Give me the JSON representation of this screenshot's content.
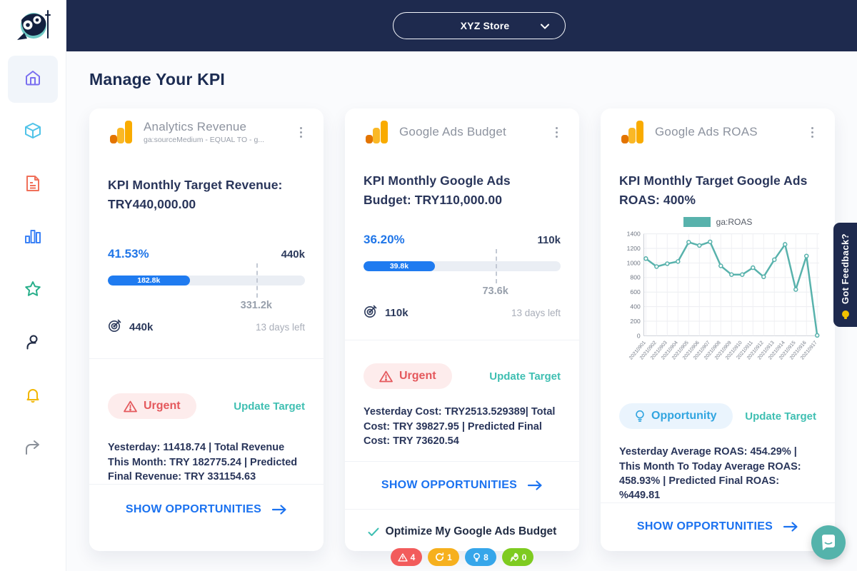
{
  "topbar": {
    "store_selector_label": "XYZ Store"
  },
  "page": {
    "title": "Manage Your KPI"
  },
  "sidebar": {
    "items": [
      {
        "name": "home",
        "active": true
      },
      {
        "name": "products",
        "active": false
      },
      {
        "name": "reports",
        "active": false
      },
      {
        "name": "analytics",
        "active": false
      },
      {
        "name": "favorites",
        "active": false
      },
      {
        "name": "account",
        "active": false
      },
      {
        "name": "notifications",
        "active": false
      },
      {
        "name": "share",
        "active": false
      }
    ]
  },
  "feedback_tab": {
    "label": "Got Feedback?"
  },
  "cards": [
    {
      "title": "Analytics Revenue",
      "subtitle": "ga:sourceMedium - EQUAL TO - g...",
      "kpi_label": "KPI Monthly Target Revenue:",
      "kpi_value": "TRY440,000.00",
      "progress": {
        "percent_label": "41.53%",
        "percent": 41.53,
        "max_label": "440k",
        "fill_label": "182.8k",
        "marker_percent": 75.3,
        "marker_label": "331.2k"
      },
      "target": {
        "value": "440k",
        "days_left": "13 days left"
      },
      "status_label": "Urgent",
      "update_target_label": "Update Target",
      "summary": "Yesterday: 11418.74 | Total Revenue This Month: TRY 182775.24 | Predicted Final Revenue: TRY 331154.63",
      "show_opportunities_label": "SHOW OPPORTUNITIES"
    },
    {
      "title": "Google Ads Budget",
      "kpi_label": "KPI Monthly Google Ads Budget:",
      "kpi_value": "TRY110,000.00",
      "progress": {
        "percent_label": "36.20%",
        "percent": 36.2,
        "max_label": "110k",
        "fill_label": "39.8k",
        "marker_percent": 66.9,
        "marker_label": "73.6k"
      },
      "target": {
        "value": "110k",
        "days_left": "13 days left"
      },
      "status_label": "Urgent",
      "update_target_label": "Update Target",
      "summary": "Yesterday Cost: TRY2513.529389| Total Cost: TRY 39827.95 | Predicted Final Cost: TRY 73620.54",
      "show_opportunities_label": "SHOW OPPORTUNITIES",
      "optimize": {
        "label": "Optimize My Google Ads Budget",
        "badges": [
          {
            "icon": "warning-icon",
            "count": "4",
            "color": "#f25c5c"
          },
          {
            "icon": "refresh-icon",
            "count": "1",
            "color": "#f6b01e"
          },
          {
            "icon": "bulb-icon",
            "count": "8",
            "color": "#36a6ea"
          },
          {
            "icon": "rocket-icon",
            "count": "0",
            "color": "#7ecb20"
          }
        ]
      }
    },
    {
      "title": "Google Ads ROAS",
      "kpi_label": "KPI Monthly Target Google Ads ROAS:",
      "kpi_value": "400%",
      "status_label": "Opportunity",
      "update_target_label": "Update Target",
      "summary": "Yesterday Average ROAS: 454.29% | This Month To Today Average ROAS: 458.93% | Predicted Final ROAS: %449.81",
      "show_opportunities_label": "SHOW OPPORTUNITIES",
      "chart_data": {
        "type": "line",
        "legend": "ga:ROAS",
        "x": [
          "20210901",
          "20210902",
          "20210903",
          "20210904",
          "20210905",
          "20210906",
          "20210907",
          "20210908",
          "20210909",
          "20210910",
          "20210911",
          "20210912",
          "20210913",
          "20210914",
          "20210915",
          "20210916",
          "20210917"
        ],
        "values": [
          1060,
          950,
          990,
          1020,
          1285,
          1240,
          1290,
          960,
          840,
          840,
          935,
          810,
          1045,
          1255,
          635,
          1095,
          5
        ],
        "ylim": [
          0,
          1400
        ],
        "ytick_step": 200,
        "line_color": "#58b2ac",
        "grid": true,
        "legend_position": "top"
      }
    }
  ],
  "colors": {
    "topbar_navy": "#1e2a4e",
    "heading_navy": "#1c2c52",
    "accent_blue": "#1f7bf0",
    "percent_blue": "#2076e8",
    "teal_link": "#3fbfb2",
    "urgent_red": "#e4585c",
    "urgent_bg": "#fdecec",
    "opportunity_blue": "#31a5e0",
    "opportunity_bg": "#eaf4fd",
    "chart_teal": "#58b2ac",
    "ga_orange_light": "#f9ab00",
    "ga_orange_dark": "#e37400"
  }
}
